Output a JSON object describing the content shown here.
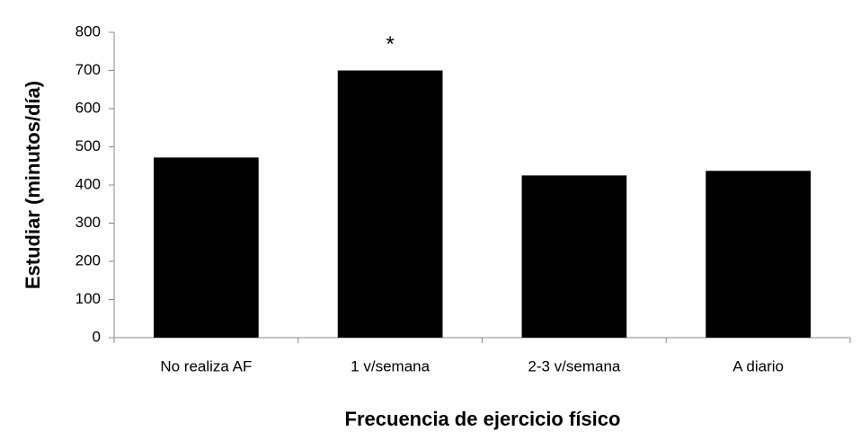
{
  "chart_data": {
    "type": "bar",
    "x_label": "Frecuencia de ejercicio físico",
    "y_label": "Estudiar (minutos/día)",
    "categories": [
      "No realiza AF",
      "1 v/semana",
      "2-3 v/semana",
      "A diario"
    ],
    "values": [
      472,
      700,
      425,
      437
    ],
    "color": "#000000",
    "annotation": "*",
    "ylim": [
      0,
      800
    ],
    "yticks": [
      0,
      100,
      200,
      300,
      400,
      500,
      600,
      700,
      800
    ],
    "grid": false
  }
}
